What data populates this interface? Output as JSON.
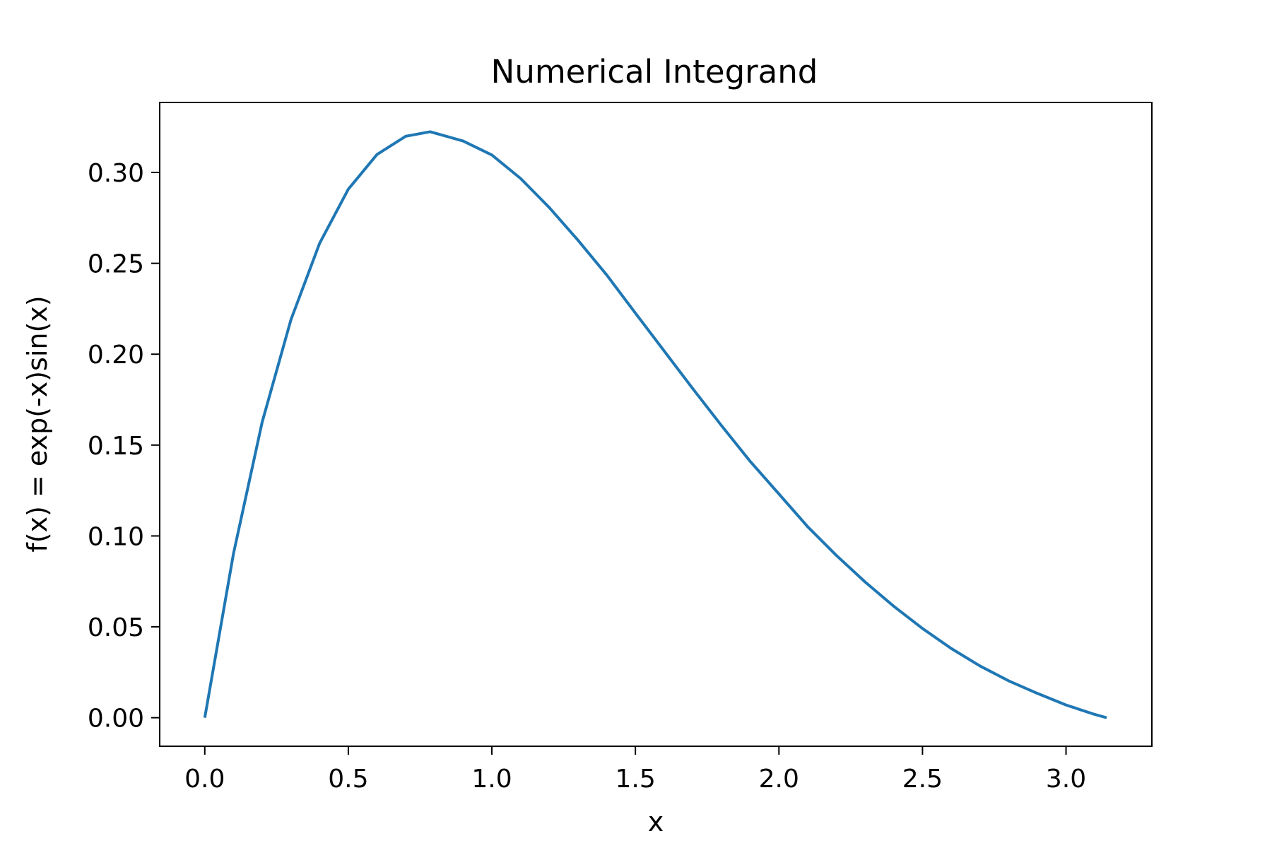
{
  "chart_data": {
    "type": "line",
    "title": "Numerical Integrand",
    "xlabel": "x",
    "ylabel": "f(x) = exp(-x)sin(x)",
    "xlim": [
      -0.157,
      3.299
    ],
    "ylim": [
      -0.0157,
      0.3385
    ],
    "x_ticks": [
      "0.0",
      "0.5",
      "1.0",
      "1.5",
      "2.0",
      "2.5",
      "3.0"
    ],
    "y_ticks": [
      "0.00",
      "0.05",
      "0.10",
      "0.15",
      "0.20",
      "0.25",
      "0.30"
    ],
    "grid": false,
    "legend": "none",
    "series": [
      {
        "color": "#1f77b4",
        "x": [
          0.0,
          0.1,
          0.2,
          0.3,
          0.4,
          0.5,
          0.6,
          0.7,
          0.785,
          0.9,
          1.0,
          1.1,
          1.2,
          1.3,
          1.4,
          1.5,
          1.6,
          1.7,
          1.8,
          1.9,
          2.0,
          2.1,
          2.2,
          2.3,
          2.4,
          2.5,
          2.6,
          2.7,
          2.8,
          2.9,
          3.0,
          3.1,
          3.1416
        ],
        "y": [
          0.0,
          0.0903,
          0.1627,
          0.2189,
          0.261,
          0.2908,
          0.3099,
          0.3199,
          0.3224,
          0.3173,
          0.3096,
          0.2967,
          0.2807,
          0.2627,
          0.2436,
          0.2226,
          0.2018,
          0.181,
          0.1607,
          0.141,
          0.1231,
          0.1051,
          0.0893,
          0.0747,
          0.0613,
          0.0491,
          0.0381,
          0.0285,
          0.0203,
          0.0134,
          0.007,
          0.0018,
          0.0
        ]
      }
    ]
  }
}
